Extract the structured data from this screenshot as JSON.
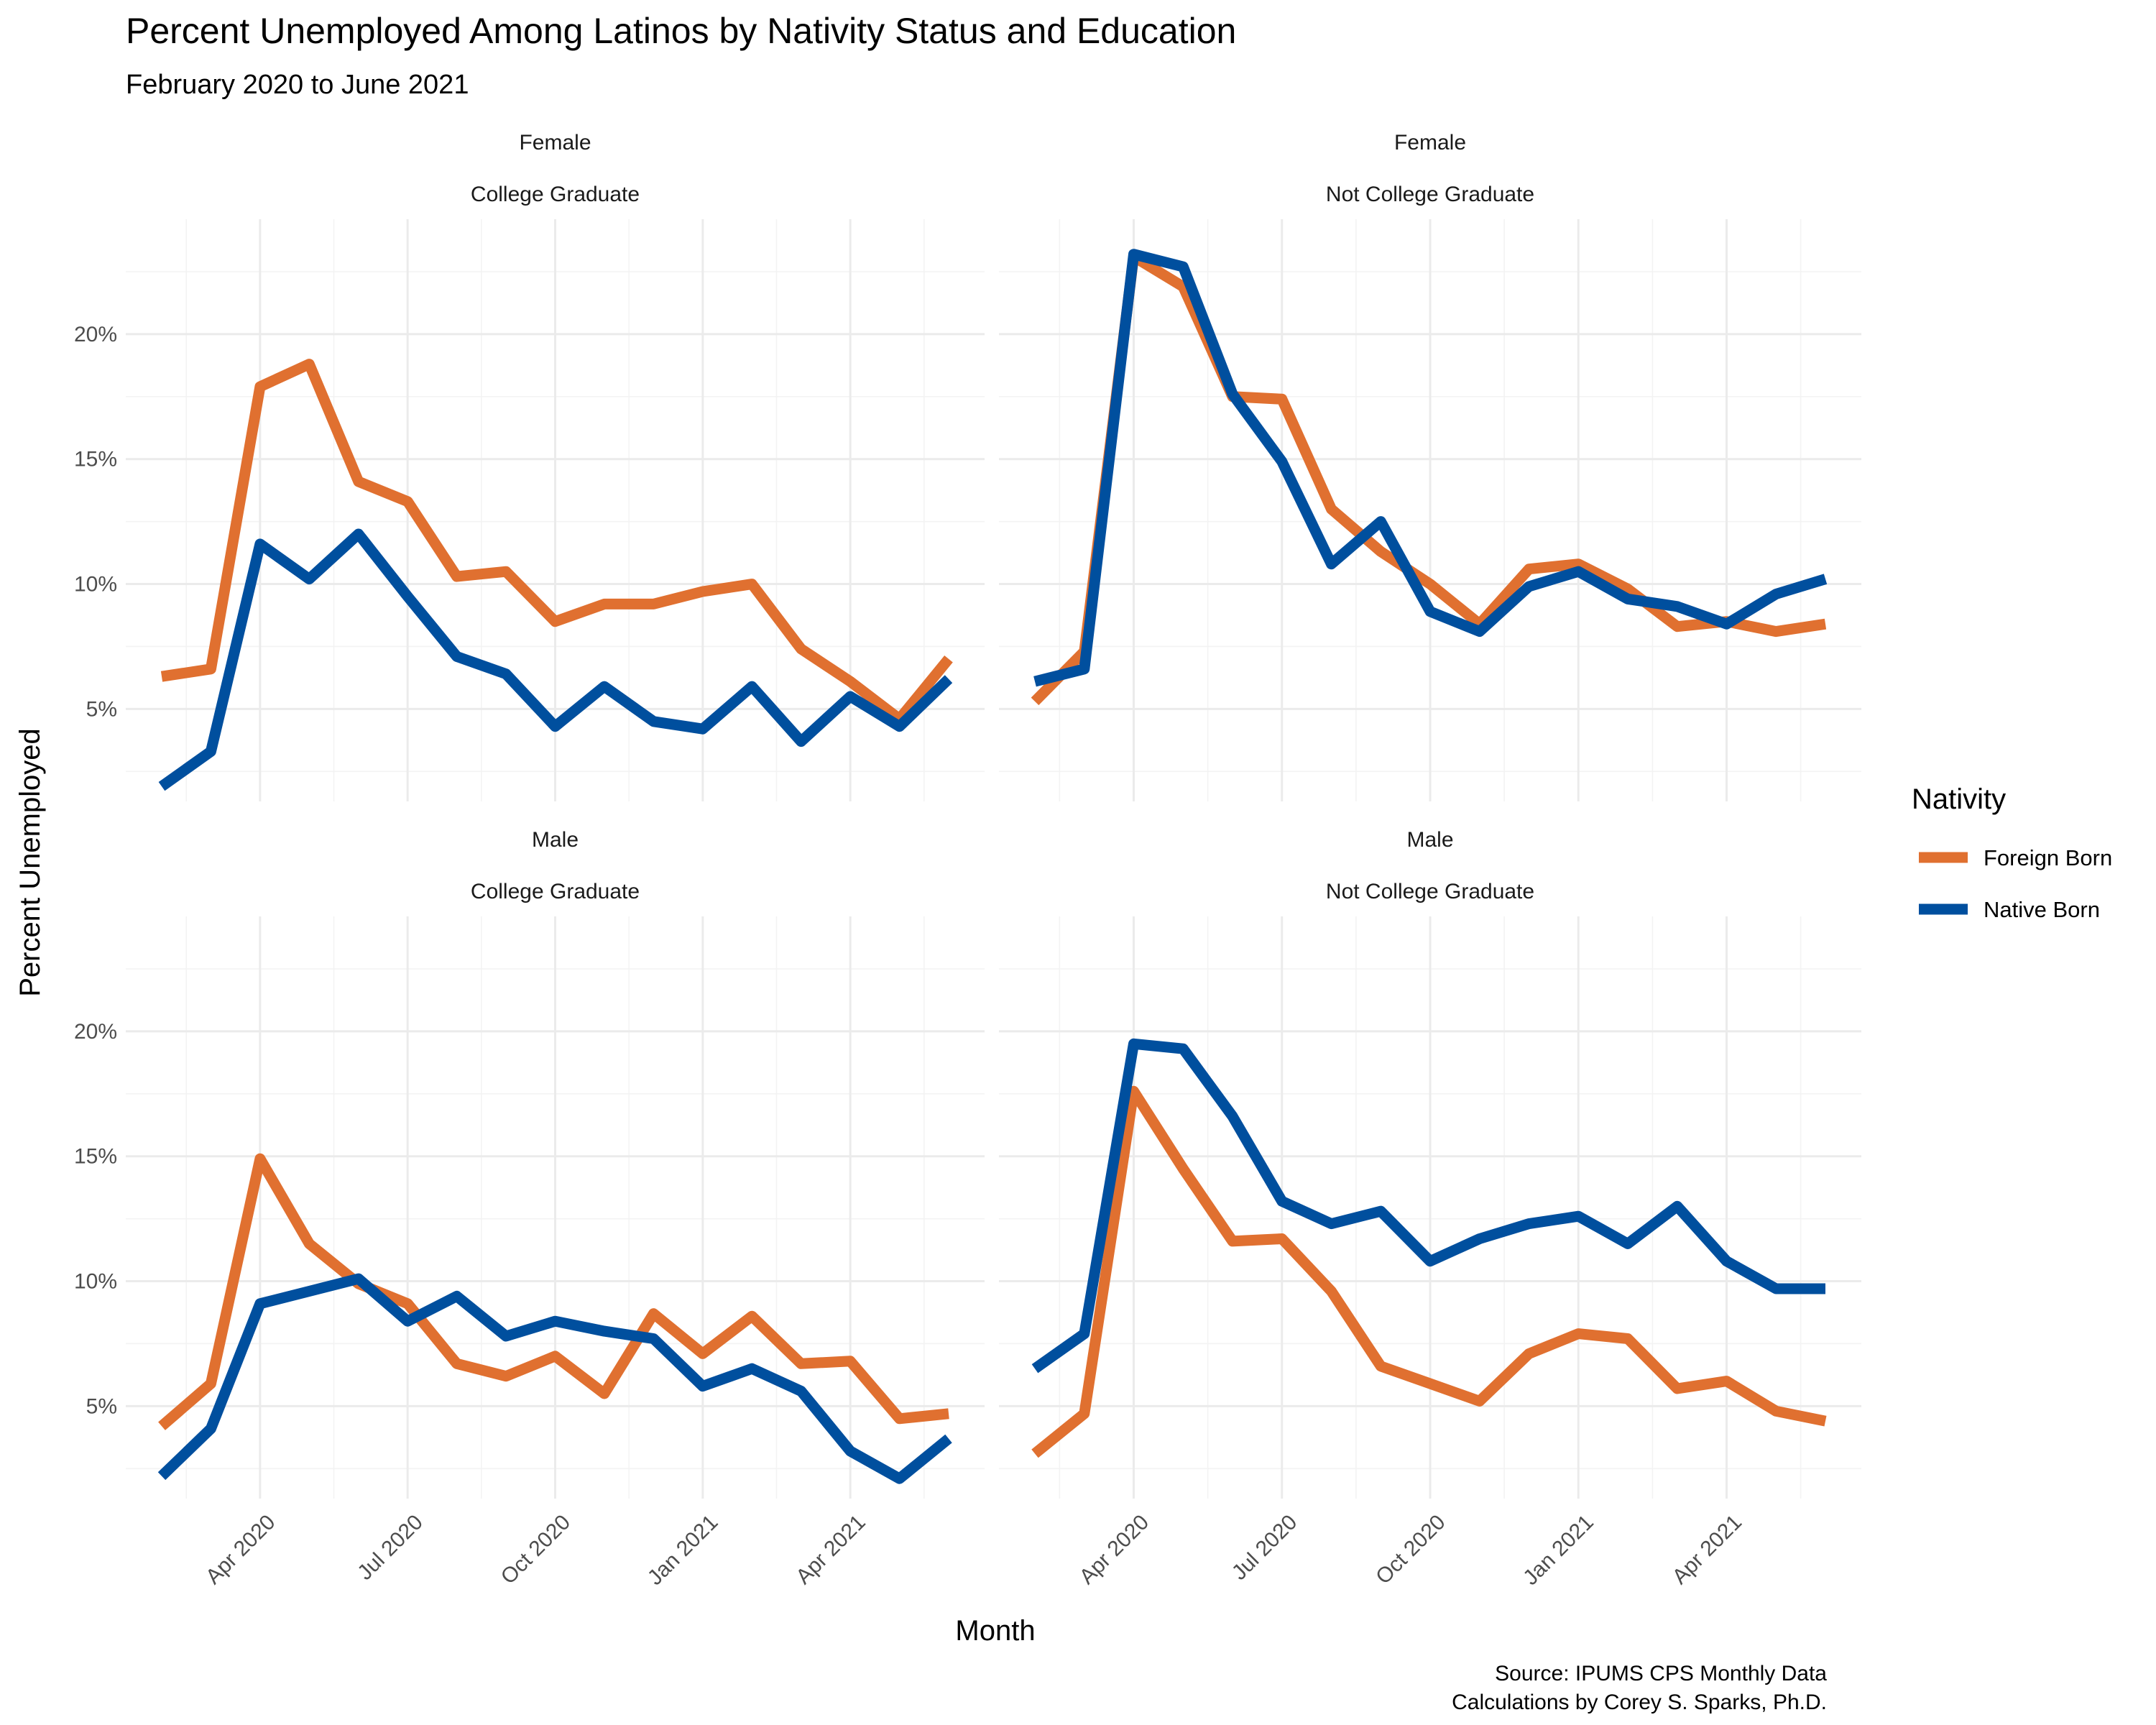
{
  "chart_data": {
    "type": "line",
    "title": "Percent Unemployed Among Latinos by Nativity Status and Education",
    "subtitle": "February 2020 to June 2021",
    "xlabel": "Month",
    "ylabel": "Percent Unemployed",
    "caption": [
      "Source: IPUMS CPS Monthly Data",
      "Calculations by Corey S. Sparks, Ph.D."
    ],
    "legend": {
      "title": "Nativity",
      "position": "right"
    },
    "colors": {
      "Foreign Born": "#e07030",
      "Native Born": "#004f9e"
    },
    "x": [
      "2020-02",
      "2020-03",
      "2020-04",
      "2020-05",
      "2020-06",
      "2020-07",
      "2020-08",
      "2020-09",
      "2020-10",
      "2020-11",
      "2020-12",
      "2021-01",
      "2021-02",
      "2021-03",
      "2021-04",
      "2021-05",
      "2021-06"
    ],
    "x_ticks": [
      "Apr 2020",
      "Jul 2020",
      "Oct 2020",
      "Jan 2021",
      "Apr 2021"
    ],
    "y_ticks": [
      "5%",
      "10%",
      "15%",
      "20%"
    ],
    "ylim": [
      1.3,
      24.6
    ],
    "grid": true,
    "facets": [
      {
        "strip": [
          "Female",
          "College Graduate"
        ],
        "series": [
          {
            "name": "Foreign Born",
            "values": [
              6.3,
              6.6,
              17.9,
              18.8,
              14.1,
              13.3,
              10.3,
              10.5,
              8.5,
              9.2,
              9.2,
              9.7,
              10.0,
              7.4,
              6.1,
              4.6,
              7.0
            ]
          },
          {
            "name": "Native Born",
            "values": [
              1.9,
              3.3,
              11.6,
              10.2,
              12.0,
              9.5,
              7.1,
              6.4,
              4.3,
              5.9,
              4.5,
              4.2,
              5.9,
              3.7,
              5.5,
              4.3,
              6.2
            ]
          }
        ]
      },
      {
        "strip": [
          "Female",
          "Not College Graduate"
        ],
        "series": [
          {
            "name": "Foreign Born",
            "values": [
              5.3,
              7.3,
              23.1,
              21.9,
              17.5,
              17.4,
              13.0,
              11.3,
              10.0,
              8.4,
              10.6,
              10.8,
              9.8,
              8.3,
              8.5,
              8.1,
              8.4
            ]
          },
          {
            "name": "Native Born",
            "values": [
              6.1,
              6.6,
              23.2,
              22.7,
              17.6,
              14.9,
              10.8,
              12.5,
              8.9,
              8.1,
              9.9,
              10.5,
              9.4,
              9.1,
              8.4,
              9.6,
              10.2
            ]
          }
        ]
      },
      {
        "strip": [
          "Male",
          "College Graduate"
        ],
        "series": [
          {
            "name": "Foreign Born",
            "values": [
              4.2,
              5.9,
              14.9,
              11.5,
              9.9,
              9.1,
              6.7,
              6.2,
              7.0,
              5.5,
              8.7,
              7.1,
              8.6,
              6.7,
              6.8,
              4.5,
              4.7
            ]
          },
          {
            "name": "Native Born",
            "values": [
              2.2,
              4.1,
              9.1,
              9.6,
              10.1,
              8.4,
              9.4,
              7.8,
              8.4,
              8.0,
              7.7,
              5.8,
              6.5,
              5.6,
              3.2,
              2.1,
              3.7
            ]
          }
        ]
      },
      {
        "strip": [
          "Male",
          "Not College Graduate"
        ],
        "series": [
          {
            "name": "Foreign Born",
            "values": [
              3.1,
              4.7,
              17.6,
              14.5,
              11.6,
              11.7,
              9.6,
              6.6,
              5.9,
              5.2,
              7.1,
              7.9,
              7.7,
              5.7,
              6.0,
              4.8,
              4.4
            ]
          },
          {
            "name": "Native Born",
            "values": [
              6.5,
              7.9,
              19.5,
              19.3,
              16.6,
              13.2,
              12.3,
              12.8,
              10.8,
              11.7,
              12.3,
              12.6,
              11.5,
              13.0,
              10.8,
              9.7,
              9.7
            ]
          }
        ]
      }
    ]
  }
}
